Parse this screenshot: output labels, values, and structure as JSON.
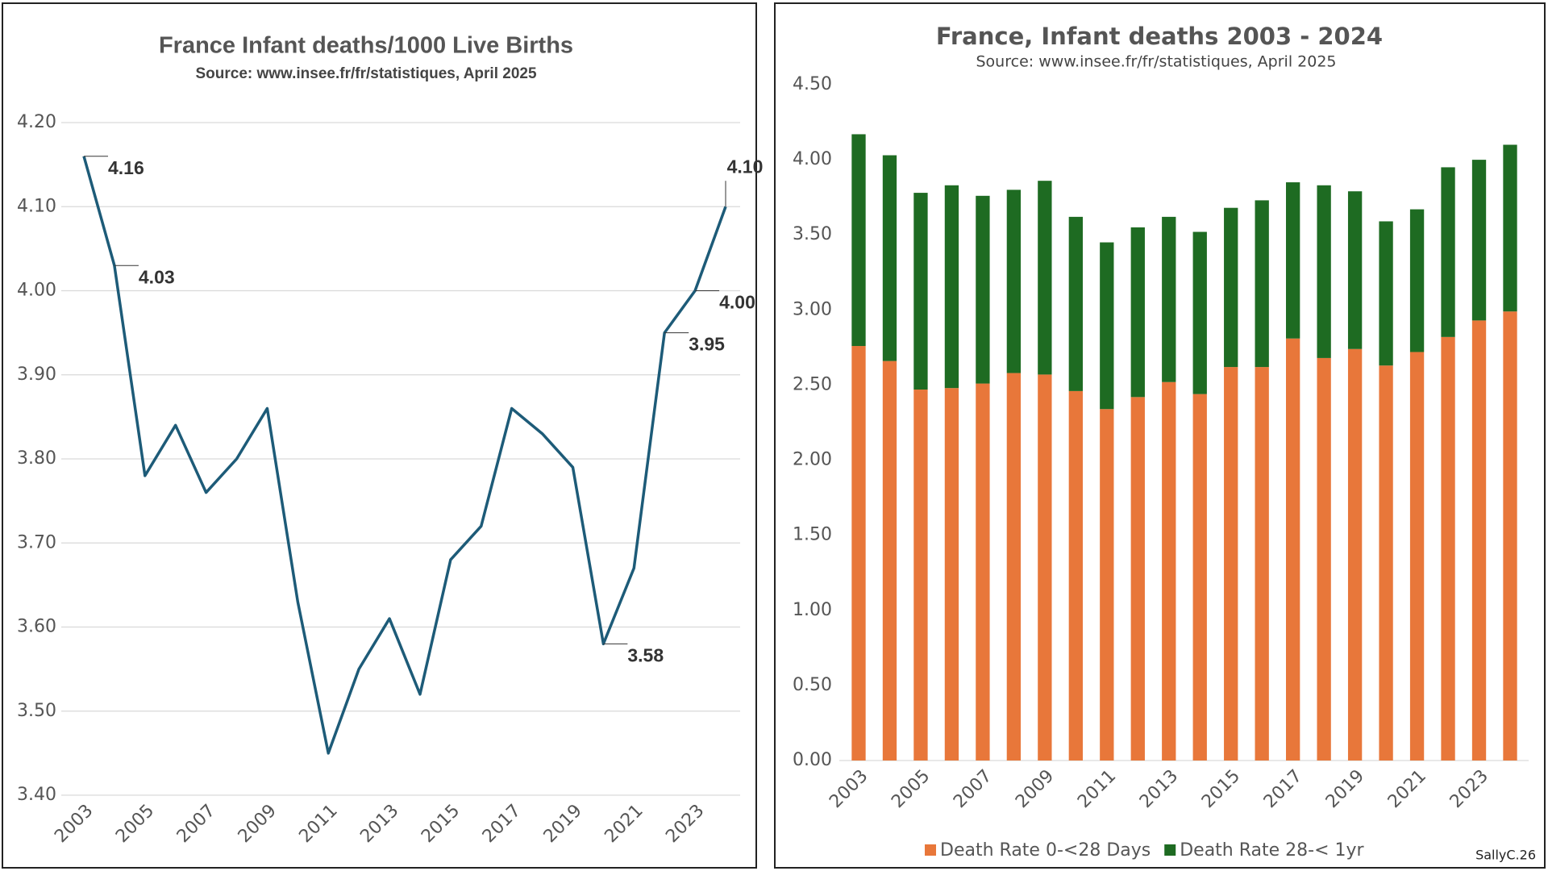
{
  "chart_data": [
    {
      "type": "line",
      "title": "France Infant deaths/1000 Live Births",
      "subtitle": "Source: www.insee.fr/fr/statistiques, April 2025",
      "categories": [
        "2003",
        null,
        "2005",
        null,
        "2007",
        null,
        "2009",
        null,
        "2011",
        null,
        "2013",
        null,
        "2015",
        null,
        "2017",
        null,
        "2019",
        null,
        "2021",
        null,
        "2023",
        null
      ],
      "values": [
        4.16,
        4.03,
        3.78,
        3.84,
        3.76,
        3.8,
        3.86,
        3.63,
        3.45,
        3.55,
        3.61,
        3.52,
        3.68,
        3.72,
        3.86,
        3.83,
        3.79,
        3.58,
        3.67,
        3.95,
        4.0,
        4.1
      ],
      "value_labels": [
        "4.16",
        "4.03",
        null,
        null,
        null,
        null,
        null,
        null,
        null,
        null,
        null,
        null,
        null,
        null,
        null,
        null,
        null,
        "3.58",
        null,
        "3.95",
        "4.00",
        "4.10"
      ],
      "color": "#1d5b78",
      "ylim": [
        3.4,
        4.2
      ],
      "yticks": [
        {
          "value": 3.4,
          "label": "3.40"
        },
        {
          "value": 3.5,
          "label": "3.50"
        },
        {
          "value": 3.6,
          "label": "3.60"
        },
        {
          "value": 3.7,
          "label": "3.70"
        },
        {
          "value": 3.8,
          "label": "3.80"
        },
        {
          "value": 3.9,
          "label": "3.90"
        },
        {
          "value": 4.0,
          "label": "4.00"
        },
        {
          "value": 4.1,
          "label": "4.10"
        },
        {
          "value": 4.2,
          "label": "4.20"
        }
      ],
      "grid": true
    },
    {
      "type": "bar",
      "stacked": true,
      "title": "France, Infant deaths 2003 - 2024",
      "subtitle": "Source: www.insee.fr/fr/statistiques, April 2025",
      "categories": [
        "2003",
        null,
        "2005",
        null,
        "2007",
        null,
        "2009",
        null,
        "2011",
        null,
        "2013",
        null,
        "2015",
        null,
        "2017",
        null,
        "2019",
        null,
        "2021",
        null,
        "2023",
        null
      ],
      "series": [
        {
          "name": "Death Rate 0-<28 Days",
          "color": "#e8773a",
          "values": [
            2.76,
            2.66,
            2.47,
            2.48,
            2.51,
            2.58,
            2.57,
            2.46,
            2.34,
            2.42,
            2.52,
            2.44,
            2.62,
            2.62,
            2.81,
            2.68,
            2.74,
            2.63,
            2.72,
            2.82,
            2.93,
            2.99
          ]
        },
        {
          "name": "Death Rate 28-< 1yr",
          "color": "#1e6b22",
          "values": [
            1.41,
            1.37,
            1.31,
            1.35,
            1.25,
            1.22,
            1.29,
            1.16,
            1.11,
            1.13,
            1.1,
            1.08,
            1.06,
            1.11,
            1.04,
            1.15,
            1.05,
            0.96,
            0.95,
            1.13,
            1.07,
            1.11
          ]
        }
      ],
      "ylim": [
        0,
        4.5
      ],
      "yticks": [
        {
          "value": 0,
          "label": "0.00"
        },
        {
          "value": 0.5,
          "label": "0.50"
        },
        {
          "value": 1,
          "label": "1.00"
        },
        {
          "value": 1.5,
          "label": "1.50"
        },
        {
          "value": 2,
          "label": "2.00"
        },
        {
          "value": 2.5,
          "label": "2.50"
        },
        {
          "value": 3,
          "label": "3.00"
        },
        {
          "value": 3.5,
          "label": "3.50"
        },
        {
          "value": 4,
          "label": "4.00"
        },
        {
          "value": 4.5,
          "label": "4.50"
        }
      ],
      "grid": false,
      "legend": "bottom",
      "annotation": "SallyC.26"
    }
  ]
}
